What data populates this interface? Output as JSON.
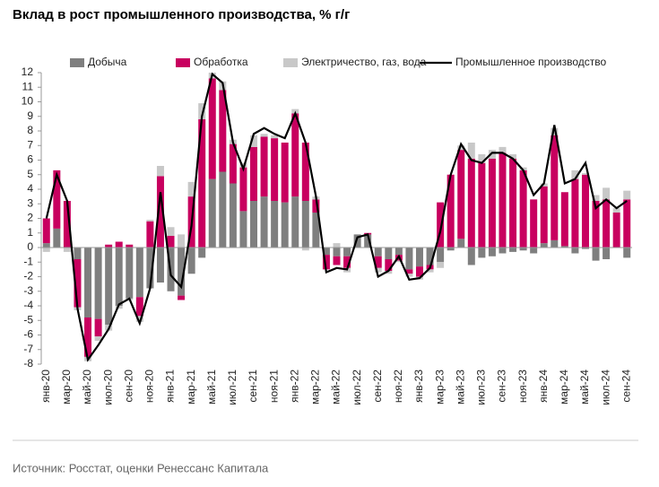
{
  "chart_data": {
    "type": "bar",
    "stacked": true,
    "title": "Вклад в рост промышленного производства, % г/г",
    "source": "Источник: Росстат, оценки Ренессанс Капитала",
    "categories": [
      "янв-20",
      null,
      "мар-20",
      null,
      "май-20",
      null,
      "июл-20",
      null,
      "сен-20",
      null,
      "ноя-20",
      null,
      "янв-21",
      null,
      "мар-21",
      null,
      "май-21",
      null,
      "июл-21",
      null,
      "сен-21",
      null,
      "ноя-21",
      null,
      "янв-22",
      null,
      "мар-22",
      null,
      "май-22",
      null,
      "июл-22",
      null,
      "сен-22",
      null,
      "ноя-22",
      null,
      "янв-23",
      null,
      "мар-23",
      null,
      "май-23",
      null,
      "июл-23",
      null,
      "сен-23",
      null,
      "ноя-23",
      null,
      "янв-24",
      null,
      "мар-24",
      null,
      "май-24",
      null,
      "июл-24",
      null,
      "сен-24"
    ],
    "series": [
      {
        "name": "Добыча",
        "color": "#7f7f7f",
        "values": [
          0.3,
          1.3,
          0,
          -0.8,
          -4.8,
          -4.9,
          -5.3,
          -4.0,
          -3.5,
          -3.4,
          -2.8,
          -2.4,
          -3.0,
          -3.3,
          -1.8,
          -0.7,
          4.7,
          5.2,
          4.4,
          2.5,
          3.2,
          3.5,
          3.2,
          3.1,
          3.5,
          3.2,
          2.4,
          -0.5,
          -0.6,
          -0.6,
          0.9,
          0.9,
          -0.6,
          -0.8,
          -0.5,
          -1.5,
          -1.3,
          -1.2,
          -1.0,
          -0.2,
          0.6,
          -1.2,
          -0.7,
          -0.6,
          -0.4,
          -0.3,
          -0.2,
          -0.4,
          0.3,
          0.5,
          0.1,
          -0.4,
          -0.1,
          -0.9,
          -0.8,
          0,
          -0.7
        ]
      },
      {
        "name": "Обработка",
        "color": "#c8005f",
        "values": [
          1.7,
          4.0,
          3.2,
          -3.3,
          -2.7,
          -1.2,
          0.2,
          0.4,
          0.2,
          -1.3,
          1.8,
          4.9,
          0.8,
          -0.3,
          3.5,
          8.8,
          6.9,
          5.6,
          2.7,
          3.0,
          3.7,
          4.1,
          4.3,
          4.1,
          5.7,
          4.0,
          0.9,
          -1.0,
          -0.6,
          -0.8,
          0,
          0.1,
          -0.8,
          -0.8,
          -0.4,
          -0.3,
          -0.7,
          -0.3,
          3.1,
          5.0,
          6.1,
          6.1,
          5.8,
          6.1,
          6.5,
          6.1,
          5.3,
          3.3,
          3.9,
          7.2,
          3.7,
          4.7,
          5.0,
          3.2,
          3.3,
          2.4,
          3.3
        ]
      },
      {
        "name": "Электричество, газ, вода",
        "color": "#c8c8c8",
        "values": [
          -0.3,
          0,
          -0.3,
          -0.2,
          -0.3,
          -0.3,
          -0.4,
          -0.2,
          -0.1,
          -0.4,
          0.1,
          0.7,
          0.6,
          0.9,
          1.0,
          1.1,
          0.4,
          0.6,
          0.3,
          0.3,
          0.8,
          0.2,
          0.2,
          0,
          0.3,
          -0.2,
          0.2,
          0,
          0.3,
          -0.3,
          0,
          0,
          -0.3,
          -0.2,
          -0.1,
          -0.2,
          -0.2,
          -0.2,
          -0.4,
          0,
          0.3,
          1.1,
          0.6,
          0.6,
          0.4,
          0.3,
          0.2,
          0,
          0.2,
          0.5,
          0,
          0.6,
          0.1,
          0.4,
          0.8,
          0.3,
          0.6
        ]
      },
      {
        "name": "Промышленное производство",
        "color": "#000000",
        "type": "line",
        "values": [
          2.0,
          5.0,
          3.2,
          -4.2,
          -7.7,
          -6.7,
          -5.6,
          -3.9,
          -3.5,
          -5.2,
          -2.8,
          3.8,
          -1.9,
          -2.7,
          1.5,
          9.0,
          11.9,
          11.3,
          7.2,
          5.4,
          7.8,
          8.2,
          7.8,
          7.5,
          9.2,
          7.2,
          3.5,
          -1.7,
          -1.4,
          -1.5,
          0.7,
          0.9,
          -2.0,
          -1.6,
          -0.6,
          -2.2,
          -2.1,
          -1.4,
          1.1,
          5.0,
          7.1,
          6.0,
          5.8,
          6.5,
          6.5,
          6.1,
          5.3,
          3.6,
          4.4,
          8.4,
          4.4,
          4.7,
          5.8,
          2.7,
          3.3,
          2.7,
          3.2
        ]
      }
    ],
    "ylim": [
      -8,
      12
    ],
    "yticks": [
      -8,
      -7,
      -6,
      -5,
      -4,
      -3,
      -2,
      -1,
      0,
      1,
      2,
      3,
      4,
      5,
      6,
      7,
      8,
      9,
      10,
      11,
      12
    ]
  }
}
